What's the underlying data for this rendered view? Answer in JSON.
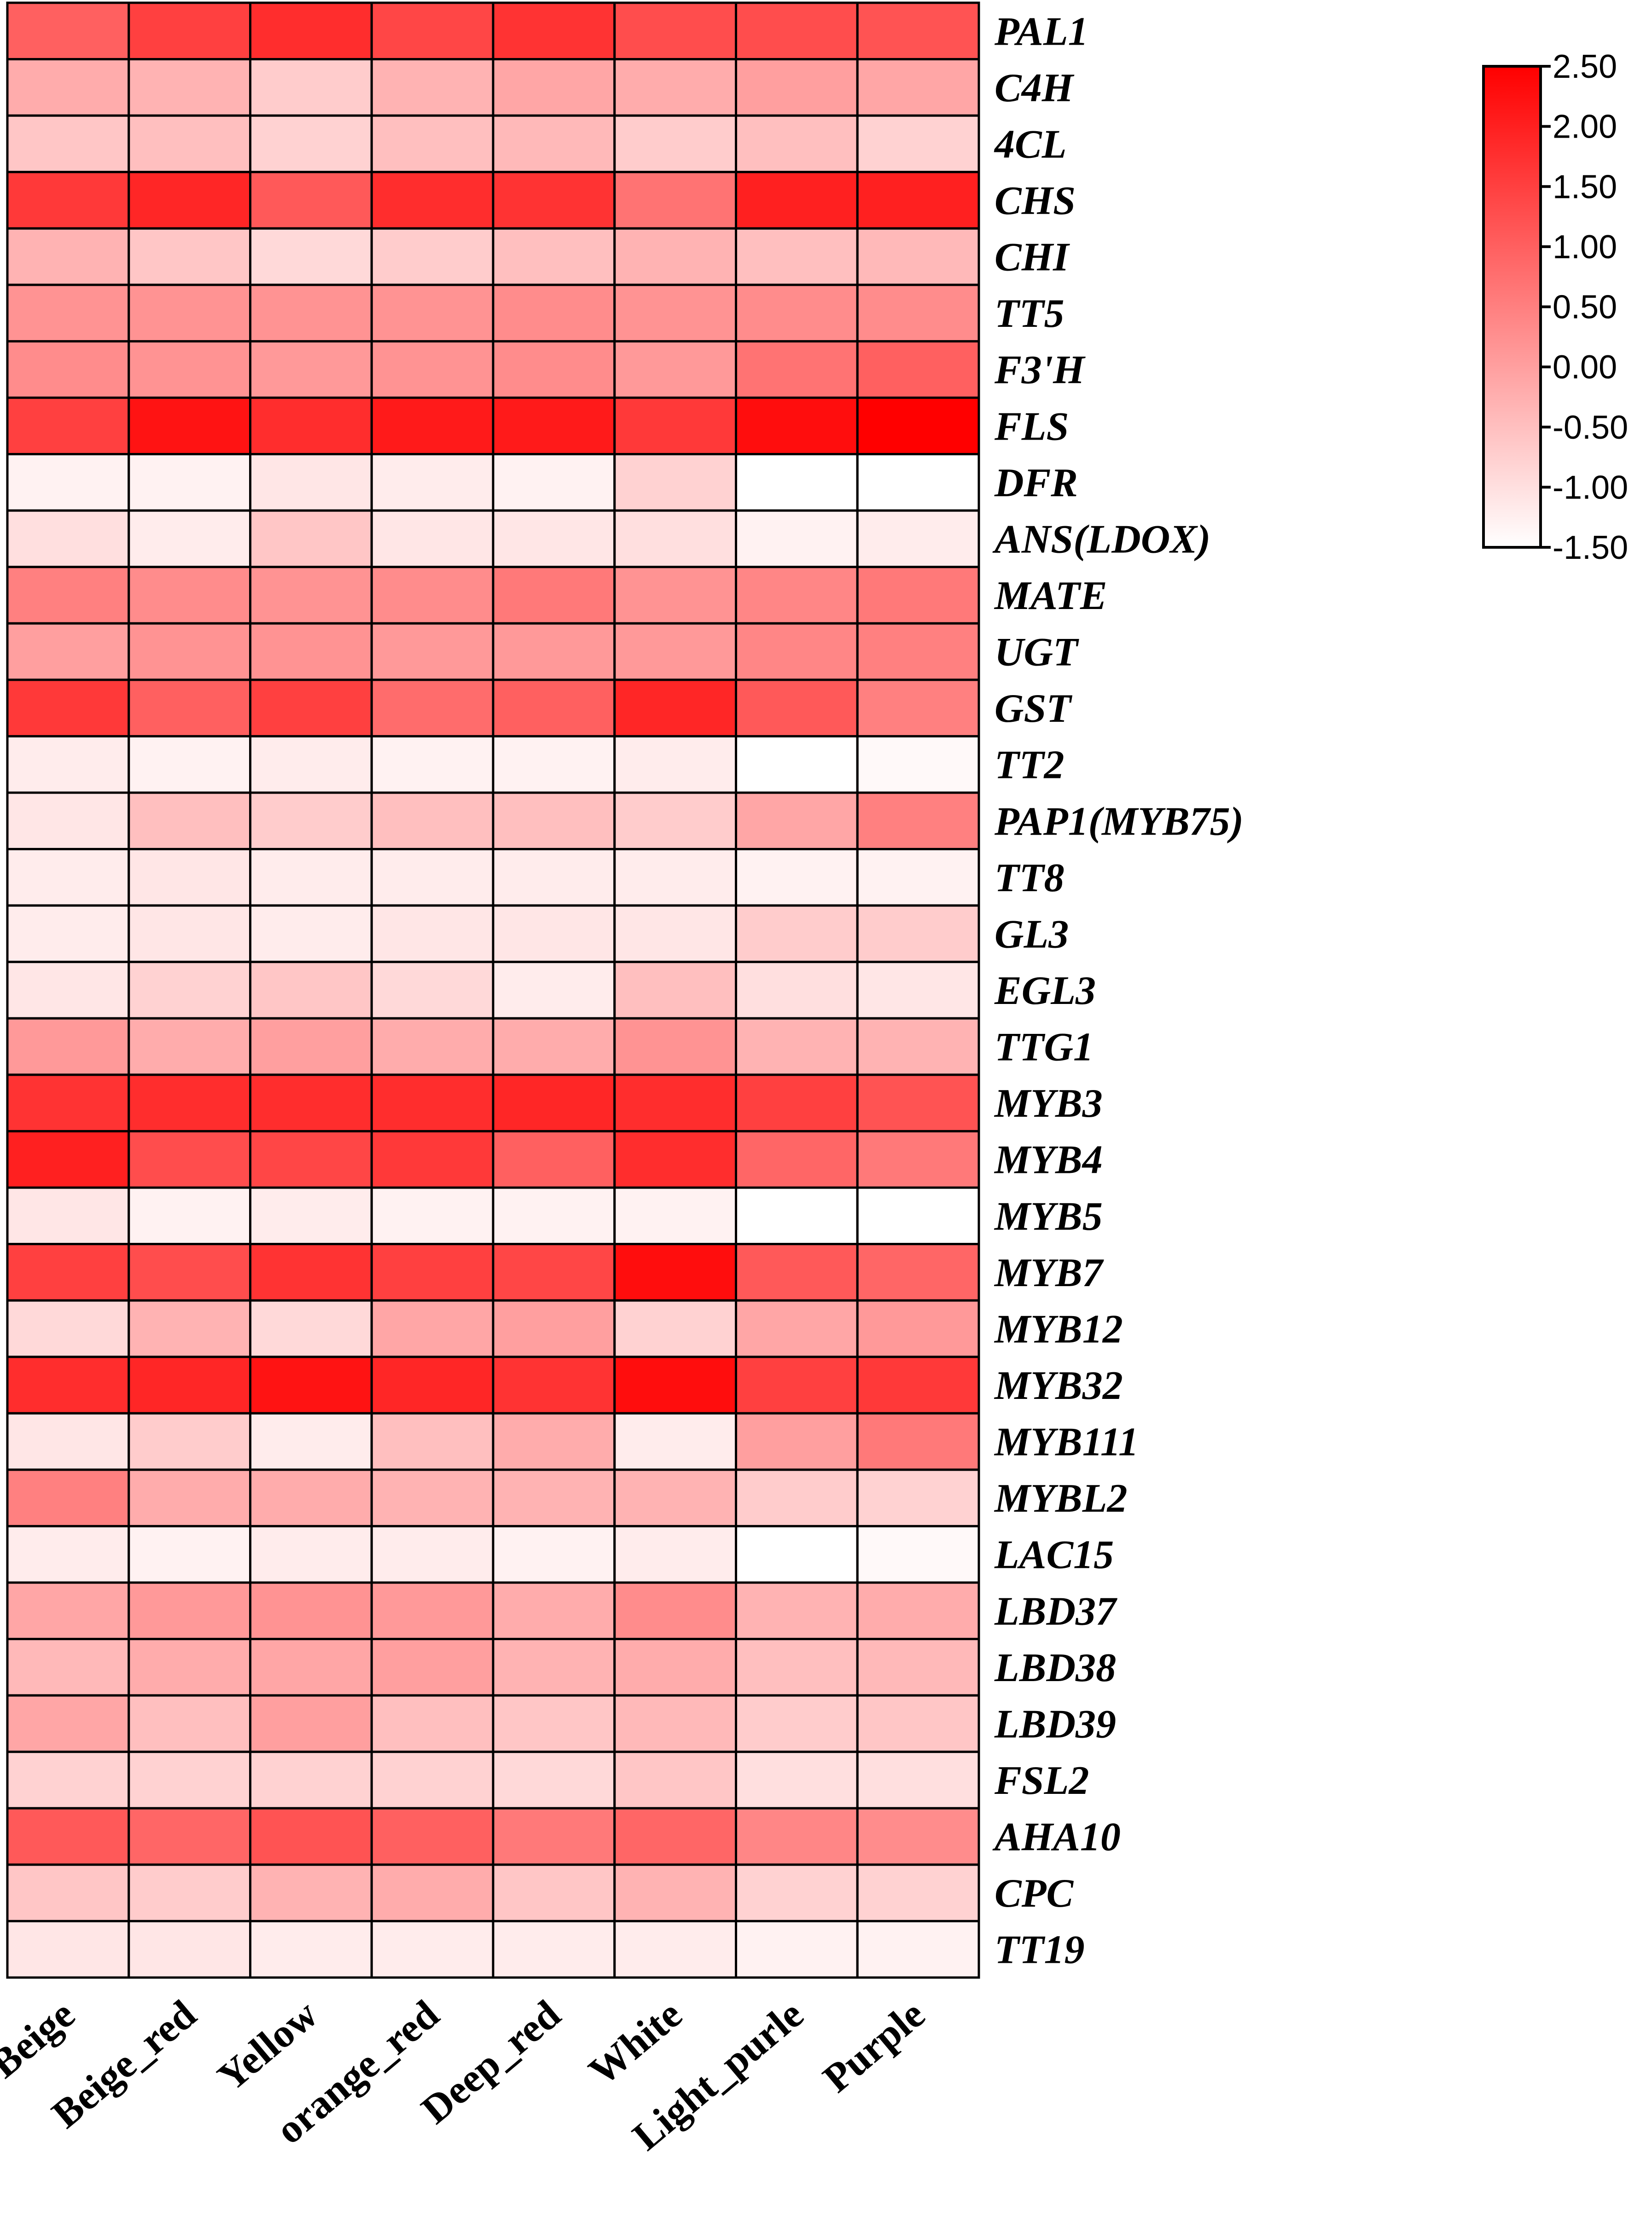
{
  "chart_data": {
    "type": "heatmap",
    "title": "",
    "xlabel": "",
    "ylabel": "",
    "columns": [
      "Beige",
      "Beige_red",
      "Yellow",
      "orange_red",
      "Deep_red",
      "White",
      "Light_purle",
      "Purple"
    ],
    "rows": [
      "PAL1",
      "C4H",
      "4CL",
      "CHS",
      "CHI",
      "TT5",
      "F3'H",
      "FLS",
      "DFR",
      "ANS(LDOX)",
      "MATE",
      "UGT",
      "GST",
      "TT2",
      "PAP1(MYB75)",
      "TT8",
      "GL3",
      "EGL3",
      "TTG1",
      "MYB3",
      "MYB4",
      "MYB5",
      "MYB7",
      "MYB12",
      "MYB32",
      "MYB111",
      "MYBL2",
      "LAC15",
      "LBD37",
      "LBD38",
      "LBD39",
      "FSL2",
      "AHA10",
      "CPC",
      "TT19"
    ],
    "values": [
      [
        1.0,
        1.5,
        1.8,
        1.4,
        1.7,
        1.3,
        1.3,
        1.2
      ],
      [
        -0.2,
        -0.3,
        -0.7,
        -0.3,
        -0.1,
        -0.2,
        0.0,
        -0.1
      ],
      [
        -0.6,
        -0.5,
        -0.8,
        -0.5,
        -0.4,
        -0.7,
        -0.5,
        -0.8
      ],
      [
        1.6,
        1.9,
        1.1,
        1.8,
        1.7,
        0.7,
        2.0,
        2.0
      ],
      [
        -0.3,
        -0.6,
        -0.9,
        -0.7,
        -0.5,
        -0.3,
        -0.5,
        -0.4
      ],
      [
        0.2,
        0.2,
        0.2,
        0.2,
        0.3,
        0.2,
        0.3,
        0.3
      ],
      [
        0.3,
        0.2,
        0.1,
        0.2,
        0.3,
        0.1,
        0.7,
        1.0
      ],
      [
        1.5,
        2.2,
        1.8,
        2.1,
        2.1,
        1.6,
        2.3,
        2.5
      ],
      [
        -1.3,
        -1.3,
        -1.1,
        -1.2,
        -1.3,
        -0.8,
        -1.5,
        -1.5
      ],
      [
        -1.0,
        -1.2,
        -0.6,
        -1.1,
        -1.1,
        -1.0,
        -1.3,
        -1.2
      ],
      [
        0.5,
        0.3,
        0.2,
        0.3,
        0.6,
        0.2,
        0.4,
        0.6
      ],
      [
        0.0,
        0.2,
        0.2,
        0.1,
        0.1,
        0.1,
        0.4,
        0.5
      ],
      [
        1.6,
        1.0,
        1.5,
        0.8,
        1.0,
        1.9,
        1.1,
        0.5
      ],
      [
        -1.2,
        -1.3,
        -1.2,
        -1.3,
        -1.3,
        -1.2,
        -1.5,
        -1.4
      ],
      [
        -1.1,
        -0.5,
        -0.7,
        -0.5,
        -0.5,
        -0.7,
        -0.1,
        0.5
      ],
      [
        -1.2,
        -1.1,
        -1.2,
        -1.2,
        -1.2,
        -1.2,
        -1.3,
        -1.3
      ],
      [
        -1.2,
        -1.1,
        -1.2,
        -1.1,
        -1.1,
        -1.1,
        -0.7,
        -0.7
      ],
      [
        -1.1,
        -0.8,
        -0.6,
        -0.9,
        -1.2,
        -0.5,
        -1.0,
        -1.1
      ],
      [
        0.1,
        -0.2,
        0.0,
        -0.2,
        -0.2,
        0.2,
        -0.3,
        -0.3
      ],
      [
        1.7,
        1.8,
        1.8,
        1.8,
        1.9,
        1.8,
        1.5,
        1.2
      ],
      [
        2.0,
        1.3,
        1.4,
        1.6,
        1.0,
        1.8,
        0.9,
        0.6
      ],
      [
        -1.1,
        -1.3,
        -1.2,
        -1.3,
        -1.3,
        -1.3,
        -1.5,
        -1.5
      ],
      [
        1.5,
        1.3,
        1.7,
        1.5,
        1.4,
        2.3,
        1.1,
        0.9
      ],
      [
        -0.9,
        -0.3,
        -0.9,
        -0.1,
        0.0,
        -0.8,
        -0.1,
        0.1
      ],
      [
        1.8,
        1.9,
        2.2,
        1.9,
        1.7,
        2.3,
        1.5,
        1.6
      ],
      [
        -1.1,
        -0.7,
        -1.2,
        -0.5,
        -0.2,
        -1.2,
        0.0,
        0.6
      ],
      [
        0.5,
        -0.2,
        -0.2,
        -0.3,
        -0.3,
        -0.3,
        -0.7,
        -0.8
      ],
      [
        -1.2,
        -1.3,
        -1.2,
        -1.2,
        -1.3,
        -1.2,
        -1.5,
        -1.4
      ],
      [
        -0.1,
        0.1,
        0.2,
        0.1,
        -0.2,
        0.3,
        -0.3,
        -0.2
      ],
      [
        -0.4,
        -0.2,
        -0.1,
        0.0,
        -0.3,
        -0.2,
        -0.5,
        -0.4
      ],
      [
        -0.1,
        -0.5,
        0.0,
        -0.5,
        -0.6,
        -0.4,
        -0.7,
        -0.6
      ],
      [
        -0.8,
        -0.8,
        -0.8,
        -0.8,
        -0.9,
        -0.6,
        -1.0,
        -1.0
      ],
      [
        1.1,
        0.9,
        1.2,
        1.0,
        0.6,
        0.9,
        0.4,
        0.3
      ],
      [
        -0.6,
        -0.7,
        -0.3,
        -0.2,
        -0.6,
        -0.3,
        -0.8,
        -0.8
      ],
      [
        -1.1,
        -1.1,
        -1.2,
        -1.2,
        -1.2,
        -1.2,
        -1.3,
        -1.3
      ]
    ],
    "colorbar": {
      "range": [
        -1.5,
        2.5
      ],
      "ticks": [
        "2.50",
        "2.00",
        "1.50",
        "1.00",
        "0.50",
        "0.00",
        "-0.50",
        "-1.00",
        "-1.50"
      ],
      "color_low": "#ffffff",
      "color_high": "#ff0000"
    },
    "legend_position": "top-right",
    "grid": true
  }
}
